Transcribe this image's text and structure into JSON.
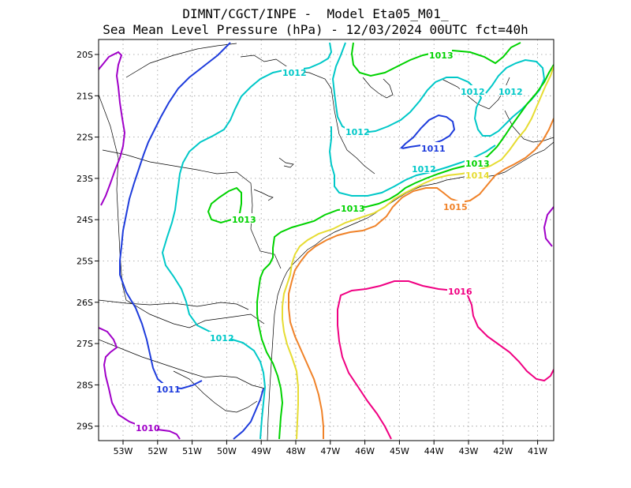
{
  "title": {
    "line1": "DIMNT/CGCT/INPE -  Model Eta05_M01_",
    "line2": "Sea Mean Level Pressure (hPa) - 12/03/2024 00UTC fct=40h"
  },
  "axes": {
    "lon_ticks": [
      "53W",
      "52W",
      "51W",
      "50W",
      "49W",
      "48W",
      "47W",
      "46W",
      "45W",
      "44W",
      "43W",
      "42W",
      "41W"
    ],
    "lat_ticks": [
      "20S",
      "21S",
      "22S",
      "23S",
      "24S",
      "25S",
      "26S",
      "27S",
      "28S",
      "29S"
    ]
  },
  "colors": {
    "c1010": "#a000c8",
    "c1011": "#1e3cdc",
    "c1012": "#00c8c8",
    "c1013": "#00d200",
    "c1014": "#e6dc32",
    "c1015": "#f08228",
    "c1016": "#f00082",
    "coast": "#000000",
    "grid": "#999999"
  },
  "contour_labels": [
    {
      "id": "l1",
      "text": "1013",
      "color_key": "c1013"
    },
    {
      "id": "l2",
      "text": "1012",
      "color_key": "c1012"
    },
    {
      "id": "l3",
      "text": "1012",
      "color_key": "c1012"
    },
    {
      "id": "l4",
      "text": "1012",
      "color_key": "c1012"
    },
    {
      "id": "l5",
      "text": "1012",
      "color_key": "c1012"
    },
    {
      "id": "l6",
      "text": "1011",
      "color_key": "c1011"
    },
    {
      "id": "l7",
      "text": "1012",
      "color_key": "c1012"
    },
    {
      "id": "l8",
      "text": "1013",
      "color_key": "c1013"
    },
    {
      "id": "l9",
      "text": "1014",
      "color_key": "c1014"
    },
    {
      "id": "l10",
      "text": "1015",
      "color_key": "c1015"
    },
    {
      "id": "l11",
      "text": "1013",
      "color_key": "c1013"
    },
    {
      "id": "l12",
      "text": "1013",
      "color_key": "c1013"
    },
    {
      "id": "l13",
      "text": "1016",
      "color_key": "c1016"
    },
    {
      "id": "l14",
      "text": "1012",
      "color_key": "c1012"
    },
    {
      "id": "l15",
      "text": "1011",
      "color_key": "c1011"
    },
    {
      "id": "l16",
      "text": "1010",
      "color_key": "c1010"
    }
  ]
}
